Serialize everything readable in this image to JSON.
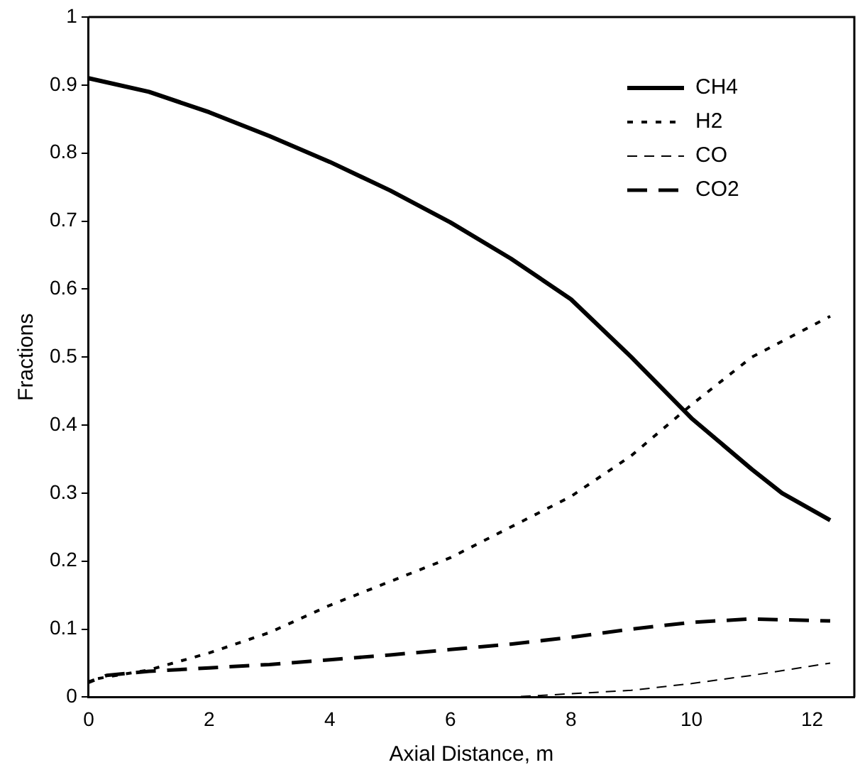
{
  "chart_data": {
    "type": "line",
    "xlabel": "Axial Distance, m",
    "ylabel": "Fractions",
    "xlim": [
      0,
      12.7
    ],
    "xticks": [
      0,
      2,
      4,
      6,
      8,
      10,
      12
    ],
    "ylim": [
      0,
      1
    ],
    "yticks": [
      0,
      0.1,
      0.2,
      0.3,
      0.4,
      0.5,
      0.6,
      0.7,
      0.8,
      0.9,
      1
    ],
    "grid": false,
    "legend": "top right",
    "marker": "none",
    "series": [
      {
        "name": "CH4",
        "color": "#000000",
        "line_style": "solid",
        "x": [
          0,
          1,
          2,
          3,
          4,
          5,
          6,
          7,
          8,
          9,
          10,
          11,
          11.5,
          12.3
        ],
        "values": [
          0.91,
          0.89,
          0.86,
          0.825,
          0.787,
          0.745,
          0.698,
          0.645,
          0.585,
          0.5,
          0.41,
          0.335,
          0.3,
          0.26
        ]
      },
      {
        "name": "H2",
        "color": "#000000",
        "line_style": "dotted",
        "x": [
          0,
          1,
          2,
          3,
          4,
          5,
          6,
          7,
          8,
          9,
          10,
          11,
          12.3
        ],
        "values": [
          0.025,
          0.04,
          0.065,
          0.095,
          0.135,
          0.17,
          0.205,
          0.25,
          0.295,
          0.355,
          0.43,
          0.5,
          0.56
        ]
      },
      {
        "name": "CO",
        "color": "#000000",
        "line_style": "dashed",
        "x": [
          0,
          6,
          7,
          8,
          9,
          10,
          11,
          12.3
        ],
        "values": [
          0,
          0,
          0,
          0.005,
          0.01,
          0.02,
          0.032,
          0.05
        ]
      },
      {
        "name": "CO2",
        "color": "#000000",
        "line_style": "dashed",
        "x": [
          0,
          0.3,
          1,
          2,
          3,
          4,
          5,
          6,
          7,
          8,
          9,
          10,
          11,
          12.3
        ],
        "values": [
          0.022,
          0.032,
          0.038,
          0.043,
          0.048,
          0.055,
          0.062,
          0.07,
          0.078,
          0.088,
          0.1,
          0.11,
          0.115,
          0.112
        ]
      }
    ]
  }
}
